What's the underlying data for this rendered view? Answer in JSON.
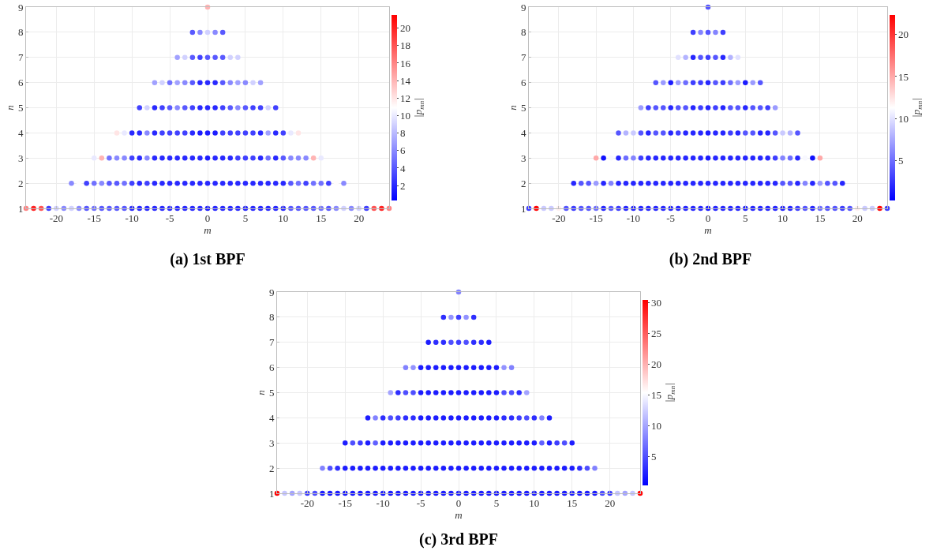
{
  "chart_data": [
    {
      "type": "scatter",
      "title": "(a) 1st BPF",
      "xlabel": "m",
      "ylabel": "n",
      "clabel": "|p$_{mn}$|",
      "xlim": [
        -24,
        24
      ],
      "ylim": [
        1,
        9
      ],
      "xticks": [
        -20,
        -15,
        -10,
        -5,
        0,
        5,
        10,
        15,
        20
      ],
      "yticks": [
        1,
        2,
        3,
        4,
        5,
        6,
        7,
        8,
        9
      ],
      "clim": [
        0.3,
        21.5
      ],
      "cticks": [
        2,
        4,
        6,
        8,
        10,
        12,
        14,
        16,
        18,
        20
      ],
      "grid": true,
      "marker": "circle",
      "x": [
        0,
        -2,
        -1,
        0,
        1,
        2,
        -4,
        -3,
        -2,
        -1,
        0,
        1,
        2,
        3,
        4,
        -7,
        -6,
        -5,
        -4,
        -3,
        -2,
        -1,
        0,
        1,
        2,
        3,
        4,
        5,
        6,
        7,
        -9,
        -8,
        -7,
        -6,
        -5,
        -4,
        -3,
        -2,
        -1,
        0,
        1,
        2,
        3,
        4,
        5,
        6,
        7,
        8,
        9,
        -12,
        -11,
        -10,
        -9,
        -8,
        -7,
        -6,
        -5,
        -4,
        -3,
        -2,
        -1,
        0,
        1,
        2,
        3,
        4,
        5,
        6,
        7,
        8,
        9,
        10,
        11,
        12,
        -15,
        -14,
        -13,
        -12,
        -11,
        -10,
        -9,
        -8,
        -7,
        -6,
        -5,
        -4,
        -3,
        -2,
        -1,
        0,
        1,
        2,
        3,
        4,
        5,
        6,
        7,
        8,
        9,
        10,
        11,
        12,
        13,
        14,
        15,
        -18,
        -17,
        -16,
        -15,
        -14,
        -13,
        -12,
        -11,
        -10,
        -9,
        -8,
        -7,
        -6,
        -5,
        -4,
        -3,
        -2,
        -1,
        0,
        1,
        2,
        3,
        4,
        5,
        6,
        7,
        8,
        9,
        10,
        11,
        12,
        13,
        14,
        15,
        16,
        17,
        18,
        -24,
        -23,
        -22,
        -21,
        -20,
        -19,
        -18,
        -17,
        -16,
        -15,
        -14,
        -13,
        -12,
        -11,
        -10,
        -9,
        -8,
        -7,
        -6,
        -5,
        -4,
        -3,
        -2,
        -1,
        0,
        1,
        2,
        3,
        4,
        5,
        6,
        7,
        8,
        9,
        10,
        11,
        12,
        13,
        14,
        15,
        16,
        17,
        18,
        19,
        20,
        21,
        22,
        23,
        24
      ],
      "values": [
        9,
        8,
        8,
        8,
        8,
        8,
        7,
        7,
        7,
        7,
        7,
        7,
        7,
        7,
        7,
        6,
        6,
        6,
        6,
        6,
        6,
        6,
        6,
        6,
        6,
        6,
        6,
        6,
        6,
        6,
        5,
        5,
        5,
        5,
        5,
        5,
        5,
        5,
        5,
        5,
        5,
        5,
        5,
        5,
        5,
        5,
        5,
        5,
        5,
        4,
        4,
        4,
        4,
        4,
        4,
        4,
        4,
        4,
        4,
        4,
        4,
        4,
        4,
        4,
        4,
        4,
        4,
        4,
        4,
        4,
        4,
        4,
        4,
        4,
        3,
        3,
        3,
        3,
        3,
        3,
        3,
        3,
        3,
        3,
        3,
        3,
        3,
        3,
        3,
        3,
        3,
        3,
        3,
        3,
        3,
        3,
        3,
        3,
        3,
        3,
        3,
        3,
        3,
        3,
        3,
        2,
        2,
        2,
        2,
        2,
        2,
        2,
        2,
        2,
        2,
        2,
        2,
        2,
        2,
        2,
        2,
        2,
        2,
        2,
        2,
        2,
        2,
        2,
        2,
        2,
        2,
        2,
        2,
        2,
        2,
        2,
        2,
        2,
        2,
        2,
        2,
        2,
        1,
        1,
        1,
        1,
        1,
        1,
        1,
        1,
        1,
        1,
        1,
        1,
        1,
        1,
        1,
        1,
        1,
        1,
        1,
        1,
        1,
        1,
        1,
        1,
        1,
        1,
        1,
        1,
        1,
        1,
        1,
        1,
        1,
        1,
        1,
        1,
        1,
        1,
        1,
        1,
        1,
        1,
        1,
        1,
        1,
        1,
        1,
        1,
        1
      ],
      "cvalues": [
        14,
        4,
        6,
        9,
        6,
        4,
        7,
        9,
        4,
        3,
        4,
        4,
        4,
        9,
        9,
        7,
        9,
        5,
        7,
        6,
        4,
        2,
        2,
        2,
        4,
        6,
        7,
        6,
        9,
        7,
        3,
        9,
        2,
        3,
        4,
        6,
        4,
        3,
        2,
        2,
        2,
        3,
        4,
        6,
        4,
        3,
        3,
        9,
        3,
        12,
        10,
        2,
        2,
        6,
        2,
        3,
        3,
        3,
        3,
        2,
        1.5,
        1.5,
        1.5,
        3,
        3,
        3,
        3,
        3,
        2,
        7,
        2,
        3,
        10,
        12,
        10,
        14,
        5,
        6,
        6,
        3,
        2,
        6,
        2,
        2,
        2,
        2,
        2,
        2,
        2,
        1.5,
        2,
        2,
        2,
        3,
        3,
        3,
        2,
        5,
        2,
        4,
        6,
        6,
        6,
        14,
        10,
        6,
        11,
        3,
        5,
        6,
        4,
        4,
        5,
        3,
        2,
        3,
        2,
        2,
        2,
        2,
        2,
        2,
        2,
        2,
        2,
        2,
        2,
        2,
        2,
        2,
        2,
        2,
        2,
        2,
        4,
        5,
        3,
        5,
        5,
        3,
        11,
        6,
        16,
        20,
        18,
        3,
        9,
        6,
        9,
        6,
        4,
        5,
        4,
        4,
        4,
        4,
        2,
        2,
        2,
        2,
        2,
        2,
        2,
        2,
        2,
        2,
        1.5,
        2,
        2,
        2,
        2,
        2,
        2,
        2,
        2,
        2,
        2,
        4,
        4,
        4,
        4,
        5,
        4,
        6,
        9,
        6,
        9,
        3,
        18,
        20,
        16
      ]
    },
    {
      "type": "scatter",
      "title": "(b) 2nd BPF",
      "xlabel": "m",
      "ylabel": "n",
      "clabel": "|p$_{mn}$|",
      "xlim": [
        -24,
        24
      ],
      "ylim": [
        1,
        9
      ],
      "xticks": [
        -20,
        -15,
        -10,
        -5,
        0,
        5,
        10,
        15,
        20
      ],
      "yticks": [
        1,
        2,
        3,
        4,
        5,
        6,
        7,
        8,
        9
      ],
      "clim": [
        0.3,
        22.3
      ],
      "cticks": [
        5,
        10,
        15,
        20
      ],
      "grid": true,
      "marker": "circle",
      "x": [
        0,
        -2,
        -1,
        0,
        1,
        2,
        -4,
        -3,
        -2,
        -1,
        0,
        1,
        2,
        3,
        4,
        -7,
        -6,
        -5,
        -4,
        -3,
        -2,
        -1,
        0,
        1,
        2,
        3,
        4,
        5,
        6,
        7,
        -9,
        -8,
        -7,
        -6,
        -5,
        -4,
        -3,
        -2,
        -1,
        0,
        1,
        2,
        3,
        4,
        5,
        6,
        7,
        8,
        9,
        -12,
        -11,
        -10,
        -9,
        -8,
        -7,
        -6,
        -5,
        -4,
        -3,
        -2,
        -1,
        0,
        1,
        2,
        3,
        4,
        5,
        6,
        7,
        8,
        9,
        10,
        11,
        12,
        -15,
        -14,
        -13,
        -12,
        -11,
        -10,
        -9,
        -8,
        -7,
        -6,
        -5,
        -4,
        -3,
        -2,
        -1,
        0,
        1,
        2,
        3,
        4,
        5,
        6,
        7,
        8,
        9,
        10,
        11,
        12,
        13,
        14,
        15,
        -18,
        -17,
        -16,
        -15,
        -14,
        -13,
        -12,
        -11,
        -10,
        -9,
        -8,
        -7,
        -6,
        -5,
        -4,
        -3,
        -2,
        -1,
        0,
        1,
        2,
        3,
        4,
        5,
        6,
        7,
        8,
        9,
        10,
        11,
        12,
        13,
        14,
        15,
        16,
        17,
        18,
        -24,
        -23,
        -22,
        -21,
        -20,
        -19,
        -18,
        -17,
        -16,
        -15,
        -14,
        -13,
        -12,
        -11,
        -10,
        -9,
        -8,
        -7,
        -6,
        -5,
        -4,
        -3,
        -2,
        -1,
        0,
        1,
        2,
        3,
        4,
        5,
        6,
        7,
        8,
        9,
        10,
        11,
        12,
        13,
        14,
        15,
        16,
        17,
        18,
        19,
        20,
        21,
        22,
        23,
        24
      ],
      "values": [
        9,
        8,
        8,
        8,
        8,
        8,
        7,
        7,
        7,
        7,
        7,
        7,
        7,
        7,
        7,
        6,
        6,
        6,
        6,
        6,
        6,
        6,
        6,
        6,
        6,
        6,
        6,
        6,
        6,
        6,
        5,
        5,
        5,
        5,
        5,
        5,
        5,
        5,
        5,
        5,
        5,
        5,
        5,
        5,
        5,
        5,
        5,
        5,
        5,
        4,
        4,
        4,
        4,
        4,
        4,
        4,
        4,
        4,
        4,
        4,
        4,
        4,
        4,
        4,
        4,
        4,
        4,
        4,
        4,
        4,
        4,
        4,
        4,
        4,
        3,
        3,
        3,
        3,
        3,
        3,
        3,
        3,
        3,
        3,
        3,
        3,
        3,
        3,
        3,
        3,
        3,
        3,
        3,
        3,
        3,
        3,
        3,
        3,
        3,
        3,
        3,
        3,
        3,
        3,
        3,
        2,
        2,
        2,
        2,
        2,
        2,
        2,
        2,
        2,
        2,
        2,
        2,
        2,
        2,
        2,
        2,
        2,
        2,
        2,
        2,
        2,
        2,
        2,
        2,
        2,
        2,
        2,
        2,
        2,
        2,
        2,
        2,
        2,
        2,
        2,
        2,
        2,
        1,
        1,
        1,
        1,
        1,
        1,
        1,
        1,
        1,
        1,
        1,
        1,
        1,
        1,
        1,
        1,
        1,
        1,
        1,
        1,
        1,
        1,
        1,
        1,
        1,
        1,
        1,
        1,
        1,
        1,
        1,
        1,
        1,
        1,
        1,
        1,
        1,
        1,
        1,
        1,
        1,
        1,
        1,
        1,
        1,
        1,
        1,
        1,
        1
      ],
      "cvalues": [
        4,
        3,
        6,
        4,
        6,
        3,
        10,
        8,
        2,
        4,
        3,
        4,
        2,
        8,
        10,
        4,
        7,
        1.5,
        7,
        5,
        3,
        3,
        2,
        4,
        3,
        5,
        7,
        1.5,
        7,
        4,
        7,
        3,
        4,
        4,
        2,
        4,
        4,
        2,
        3,
        2,
        3,
        2,
        4,
        4,
        2,
        4,
        4,
        3,
        7,
        4,
        8,
        9,
        4,
        2,
        4,
        4,
        2,
        3,
        2,
        2,
        2,
        1.5,
        2,
        2,
        3,
        2,
        4,
        4,
        2,
        2,
        4,
        9,
        8,
        4,
        15,
        1,
        11,
        2,
        5,
        6,
        3,
        2,
        2,
        2,
        2,
        2,
        2,
        2,
        2,
        1.5,
        2,
        2,
        2,
        2,
        2,
        2,
        2,
        2,
        3,
        6,
        5,
        2,
        11,
        1,
        15,
        2,
        4,
        4,
        7,
        2,
        6,
        2,
        2,
        2,
        2,
        2,
        2,
        2,
        2,
        2,
        2,
        2,
        2,
        2,
        2,
        2,
        2,
        2,
        2,
        2,
        2,
        2,
        2,
        4,
        4,
        2,
        6,
        2,
        7,
        4,
        4,
        2,
        3,
        22,
        9,
        9,
        12,
        4,
        3,
        4,
        4,
        5,
        2,
        4,
        3,
        2,
        2,
        2,
        2,
        2,
        2,
        2,
        2,
        2,
        2,
        2,
        1.5,
        2,
        2,
        2,
        2,
        2,
        2,
        2,
        2,
        2,
        2,
        2,
        3,
        4,
        2,
        5,
        4,
        4,
        3,
        4,
        12,
        9,
        9,
        22,
        3
      ]
    },
    {
      "type": "scatter",
      "title": "(c) 3rd BPF",
      "xlabel": "m",
      "ylabel": "n",
      "clabel": "|p$_{mn}$|",
      "xlim": [
        -24,
        24
      ],
      "ylim": [
        1,
        9
      ],
      "xticks": [
        -20,
        -15,
        -10,
        -5,
        0,
        5,
        10,
        15,
        20
      ],
      "yticks": [
        1,
        2,
        3,
        4,
        5,
        6,
        7,
        8,
        9
      ],
      "clim": [
        0.3,
        30.5
      ],
      "cticks": [
        5,
        10,
        15,
        20,
        25,
        30
      ],
      "grid": true,
      "marker": "circle",
      "x": [
        0,
        -2,
        -1,
        0,
        1,
        2,
        -4,
        -3,
        -2,
        -1,
        0,
        1,
        2,
        3,
        4,
        -7,
        -6,
        -5,
        -4,
        -3,
        -2,
        -1,
        0,
        1,
        2,
        3,
        4,
        5,
        6,
        7,
        -9,
        -8,
        -7,
        -6,
        -5,
        -4,
        -3,
        -2,
        -1,
        0,
        1,
        2,
        3,
        4,
        5,
        6,
        7,
        8,
        9,
        -12,
        -11,
        -10,
        -9,
        -8,
        -7,
        -6,
        -5,
        -4,
        -3,
        -2,
        -1,
        0,
        1,
        2,
        3,
        4,
        5,
        6,
        7,
        8,
        9,
        10,
        11,
        12,
        -15,
        -14,
        -13,
        -12,
        -11,
        -10,
        -9,
        -8,
        -7,
        -6,
        -5,
        -4,
        -3,
        -2,
        -1,
        0,
        1,
        2,
        3,
        4,
        5,
        6,
        7,
        8,
        9,
        10,
        11,
        12,
        13,
        14,
        15,
        -18,
        -17,
        -16,
        -15,
        -14,
        -13,
        -12,
        -11,
        -10,
        -9,
        -8,
        -7,
        -6,
        -5,
        -4,
        -3,
        -2,
        -1,
        0,
        1,
        2,
        3,
        4,
        5,
        6,
        7,
        8,
        9,
        10,
        11,
        12,
        13,
        14,
        15,
        16,
        17,
        18,
        -24,
        -23,
        -22,
        -21,
        -20,
        -19,
        -18,
        -17,
        -16,
        -15,
        -14,
        -13,
        -12,
        -11,
        -10,
        -9,
        -8,
        -7,
        -6,
        -5,
        -4,
        -3,
        -2,
        -1,
        0,
        1,
        2,
        3,
        4,
        5,
        6,
        7,
        8,
        9,
        10,
        11,
        12,
        13,
        14,
        15,
        16,
        17,
        18,
        19,
        20,
        21,
        22,
        23,
        24
      ],
      "values": [
        9,
        8,
        8,
        8,
        8,
        8,
        7,
        7,
        7,
        7,
        7,
        7,
        7,
        7,
        7,
        6,
        6,
        6,
        6,
        6,
        6,
        6,
        6,
        6,
        6,
        6,
        6,
        6,
        6,
        6,
        5,
        5,
        5,
        5,
        5,
        5,
        5,
        5,
        5,
        5,
        5,
        5,
        5,
        5,
        5,
        5,
        5,
        5,
        5,
        4,
        4,
        4,
        4,
        4,
        4,
        4,
        4,
        4,
        4,
        4,
        4,
        4,
        4,
        4,
        4,
        4,
        4,
        4,
        4,
        4,
        4,
        4,
        4,
        4,
        3,
        3,
        3,
        3,
        3,
        3,
        3,
        3,
        3,
        3,
        3,
        3,
        3,
        3,
        3,
        3,
        3,
        3,
        3,
        3,
        3,
        3,
        3,
        3,
        3,
        3,
        3,
        3,
        3,
        3,
        3,
        2,
        2,
        2,
        2,
        2,
        2,
        2,
        2,
        2,
        2,
        2,
        2,
        2,
        2,
        2,
        2,
        2,
        2,
        2,
        2,
        2,
        2,
        2,
        2,
        2,
        2,
        2,
        2,
        2,
        2,
        2,
        2,
        2,
        2,
        2,
        2,
        2,
        1,
        1,
        1,
        1,
        1,
        1,
        1,
        1,
        1,
        1,
        1,
        1,
        1,
        1,
        1,
        1,
        1,
        1,
        1,
        1,
        1,
        1,
        1,
        1,
        1,
        1,
        1,
        1,
        1,
        1,
        1,
        1,
        1,
        1,
        1,
        1,
        1,
        1,
        1,
        1,
        1,
        1,
        1,
        1,
        1,
        1,
        1,
        1,
        1
      ],
      "cvalues": [
        8,
        3,
        9,
        4,
        9,
        3,
        2,
        3,
        3,
        5,
        4,
        5,
        3,
        3,
        2,
        8,
        9,
        2,
        2,
        2,
        2,
        2,
        2,
        2,
        2,
        2,
        2,
        2,
        9,
        8,
        10,
        3,
        5,
        5,
        2,
        2,
        2,
        2,
        2,
        2,
        2,
        2,
        2,
        2,
        2,
        5,
        5,
        3,
        10,
        2,
        8,
        3,
        5,
        4,
        3,
        3,
        2,
        2,
        2,
        2,
        2,
        2,
        2,
        2,
        2,
        2,
        2,
        3,
        3,
        4,
        5,
        3,
        8,
        2,
        2,
        5,
        4,
        2,
        6,
        2,
        2,
        2,
        2,
        2,
        2,
        2,
        2,
        2,
        2,
        2,
        2,
        2,
        2,
        2,
        2,
        2,
        2,
        2,
        2,
        2,
        6,
        2,
        4,
        5,
        2,
        8,
        5,
        3,
        2,
        2,
        2,
        2,
        2,
        2,
        2,
        2,
        2,
        2,
        2,
        2,
        2,
        2,
        2,
        2,
        2,
        2,
        2,
        2,
        2,
        2,
        2,
        2,
        2,
        2,
        2,
        2,
        2,
        2,
        2,
        3,
        5,
        8,
        30,
        12,
        10,
        12,
        4,
        5,
        2,
        2,
        2,
        2,
        2,
        2,
        2,
        2,
        2,
        2,
        2,
        2,
        2,
        2,
        2,
        2,
        2,
        2,
        2,
        2,
        2,
        2,
        2,
        2,
        2,
        2,
        2,
        2,
        2,
        2,
        2,
        2,
        2,
        2,
        2,
        2,
        2,
        5,
        4,
        12,
        10,
        12,
        30
      ]
    }
  ]
}
